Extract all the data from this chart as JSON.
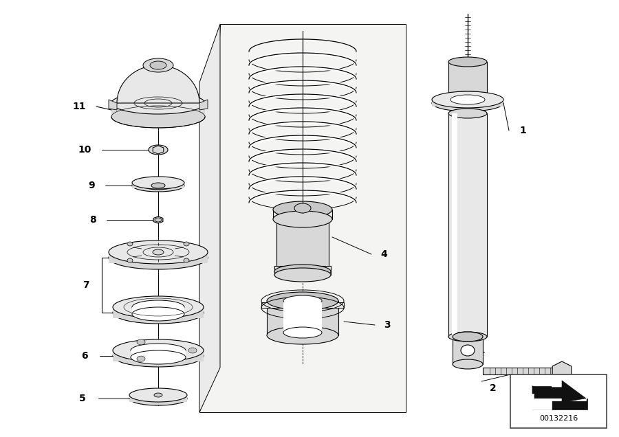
{
  "bg_color": "#ffffff",
  "fig_width": 9.0,
  "fig_height": 6.36,
  "dpi": 100,
  "lc": "#000000",
  "lw": 0.8,
  "panel_color": "#f0f0f0",
  "part_color": "#e8e8e8",
  "part_dark": "#c8c8c8",
  "part_mid": "#d8d8d8",
  "ref_number": "00132216"
}
